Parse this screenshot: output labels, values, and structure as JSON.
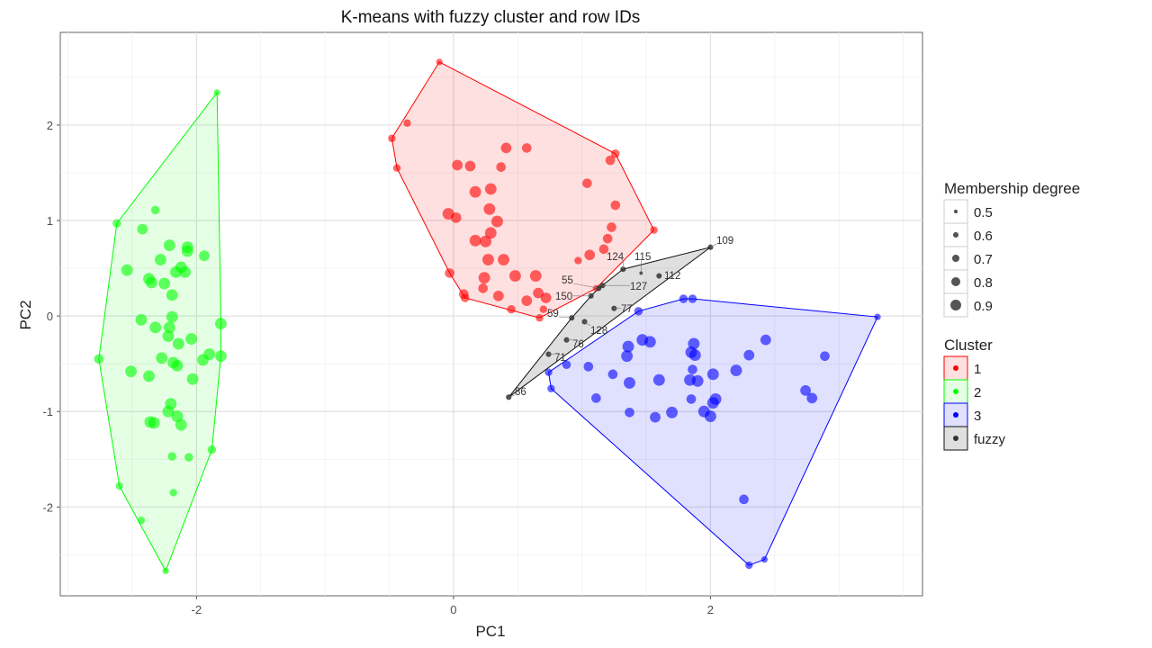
{
  "chart_data": {
    "type": "scatter",
    "title": "K-means with fuzzy cluster and row IDs",
    "xlabel": "PC1",
    "ylabel": "PC2",
    "xlim": [
      -3.06,
      3.65
    ],
    "ylim": [
      -2.93,
      2.97
    ],
    "xticks": [
      -2,
      0,
      2
    ],
    "yticks": [
      -2,
      -1,
      0,
      1,
      2
    ],
    "grid": true,
    "legend_position": "right",
    "size_legend": {
      "title": "Membership degree",
      "values": [
        0.5,
        0.6,
        0.7,
        0.8,
        0.9
      ]
    },
    "color_legend": {
      "title": "Cluster",
      "entries": [
        "1",
        "2",
        "3",
        "fuzzy"
      ]
    },
    "colors": {
      "1": "#ff0000",
      "2": "#00ff00",
      "3": "#0000ff",
      "fuzzy": "#333333"
    },
    "series": [
      {
        "name": "1",
        "points": [
          [
            -0.11,
            2.66,
            0.6
          ],
          [
            -0.36,
            2.02,
            0.65
          ],
          [
            -0.48,
            1.86,
            0.65
          ],
          [
            -0.44,
            1.55,
            0.65
          ],
          [
            0.41,
            1.76,
            0.8
          ],
          [
            0.57,
            1.76,
            0.75
          ],
          [
            0.03,
            1.58,
            0.8
          ],
          [
            0.13,
            1.57,
            0.8
          ],
          [
            0.37,
            1.56,
            0.75
          ],
          [
            1.26,
            1.7,
            0.7
          ],
          [
            1.22,
            1.63,
            0.75
          ],
          [
            1.04,
            1.39,
            0.75
          ],
          [
            0.17,
            1.3,
            0.85
          ],
          [
            0.29,
            1.33,
            0.85
          ],
          [
            0.28,
            1.12,
            0.85
          ],
          [
            -0.04,
            1.07,
            0.85
          ],
          [
            0.02,
            1.03,
            0.8
          ],
          [
            0.34,
            0.99,
            0.85
          ],
          [
            1.26,
            1.16,
            0.75
          ],
          [
            1.56,
            0.9,
            0.65
          ],
          [
            1.23,
            0.93,
            0.75
          ],
          [
            1.2,
            0.81,
            0.75
          ],
          [
            1.17,
            0.7,
            0.75
          ],
          [
            1.06,
            0.64,
            0.8
          ],
          [
            0.97,
            0.58,
            0.65
          ],
          [
            0.17,
            0.79,
            0.85
          ],
          [
            0.25,
            0.78,
            0.85
          ],
          [
            0.29,
            0.87,
            0.85
          ],
          [
            0.27,
            0.59,
            0.85
          ],
          [
            0.39,
            0.59,
            0.85
          ],
          [
            -0.03,
            0.45,
            0.75
          ],
          [
            0.24,
            0.4,
            0.85
          ],
          [
            0.48,
            0.42,
            0.85
          ],
          [
            0.64,
            0.42,
            0.85
          ],
          [
            0.23,
            0.29,
            0.75
          ],
          [
            0.08,
            0.23,
            0.75
          ],
          [
            0.09,
            0.19,
            0.7
          ],
          [
            0.35,
            0.21,
            0.8
          ],
          [
            0.57,
            0.16,
            0.8
          ],
          [
            0.66,
            0.24,
            0.8
          ],
          [
            0.72,
            0.19,
            0.8
          ],
          [
            0.45,
            0.07,
            0.7
          ],
          [
            0.67,
            -0.02,
            0.65
          ],
          [
            0.7,
            0.07,
            0.65
          ],
          [
            1.11,
            0.29,
            0.6
          ]
        ]
      },
      {
        "name": "2",
        "points": [
          [
            -1.84,
            2.34,
            0.6
          ],
          [
            -2.32,
            1.11,
            0.7
          ],
          [
            -2.62,
            0.97,
            0.7
          ],
          [
            -2.42,
            0.91,
            0.8
          ],
          [
            -2.21,
            0.74,
            0.85
          ],
          [
            -2.07,
            0.72,
            0.85
          ],
          [
            -2.07,
            0.68,
            0.85
          ],
          [
            -1.94,
            0.63,
            0.8
          ],
          [
            -2.28,
            0.59,
            0.85
          ],
          [
            -2.54,
            0.48,
            0.85
          ],
          [
            -2.12,
            0.51,
            0.85
          ],
          [
            -2.16,
            0.46,
            0.85
          ],
          [
            -2.09,
            0.46,
            0.85
          ],
          [
            -2.37,
            0.39,
            0.85
          ],
          [
            -2.35,
            0.35,
            0.85
          ],
          [
            -2.25,
            0.34,
            0.85
          ],
          [
            -2.19,
            0.22,
            0.85
          ],
          [
            -2.43,
            -0.04,
            0.85
          ],
          [
            -2.19,
            -0.01,
            0.85
          ],
          [
            -2.32,
            -0.12,
            0.85
          ],
          [
            -2.21,
            -0.12,
            0.85
          ],
          [
            -2.22,
            -0.21,
            0.85
          ],
          [
            -2.04,
            -0.24,
            0.85
          ],
          [
            -2.14,
            -0.29,
            0.85
          ],
          [
            -1.81,
            -0.08,
            0.85
          ],
          [
            -2.76,
            -0.45,
            0.75
          ],
          [
            -2.27,
            -0.44,
            0.85
          ],
          [
            -2.18,
            -0.49,
            0.85
          ],
          [
            -2.15,
            -0.52,
            0.85
          ],
          [
            -1.95,
            -0.46,
            0.85
          ],
          [
            -1.9,
            -0.4,
            0.85
          ],
          [
            -1.81,
            -0.42,
            0.85
          ],
          [
            -2.51,
            -0.58,
            0.85
          ],
          [
            -2.37,
            -0.63,
            0.85
          ],
          [
            -2.03,
            -0.66,
            0.85
          ],
          [
            -2.2,
            -0.92,
            0.85
          ],
          [
            -2.22,
            -1.0,
            0.85
          ],
          [
            -2.15,
            -1.05,
            0.85
          ],
          [
            -2.36,
            -1.11,
            0.85
          ],
          [
            -2.33,
            -1.12,
            0.85
          ],
          [
            -2.12,
            -1.14,
            0.85
          ],
          [
            -1.88,
            -1.4,
            0.7
          ],
          [
            -2.19,
            -1.47,
            0.7
          ],
          [
            -2.06,
            -1.48,
            0.7
          ],
          [
            -2.6,
            -1.78,
            0.65
          ],
          [
            -2.43,
            -2.14,
            0.65
          ],
          [
            -2.18,
            -1.85,
            0.65
          ],
          [
            -2.24,
            -2.67,
            0.6
          ]
        ]
      },
      {
        "name": "3",
        "points": [
          [
            1.79,
            0.18,
            0.7
          ],
          [
            1.86,
            0.18,
            0.7
          ],
          [
            1.44,
            0.05,
            0.7
          ],
          [
            3.3,
            -0.01,
            0.6
          ],
          [
            0.74,
            -0.59,
            0.65
          ],
          [
            0.76,
            -0.76,
            0.65
          ],
          [
            0.88,
            -0.51,
            0.7
          ],
          [
            1.05,
            -0.53,
            0.75
          ],
          [
            1.11,
            -0.86,
            0.75
          ],
          [
            1.24,
            -0.61,
            0.75
          ],
          [
            1.36,
            -0.32,
            0.85
          ],
          [
            1.35,
            -0.42,
            0.85
          ],
          [
            1.37,
            -0.7,
            0.85
          ],
          [
            1.47,
            -0.25,
            0.85
          ],
          [
            1.53,
            -0.27,
            0.85
          ],
          [
            1.6,
            -0.67,
            0.85
          ],
          [
            1.37,
            -1.01,
            0.75
          ],
          [
            1.57,
            -1.06,
            0.8
          ],
          [
            1.7,
            -1.01,
            0.85
          ],
          [
            1.87,
            -0.29,
            0.85
          ],
          [
            1.85,
            -0.38,
            0.85
          ],
          [
            1.88,
            -0.41,
            0.85
          ],
          [
            1.86,
            -0.56,
            0.75
          ],
          [
            1.84,
            -0.67,
            0.85
          ],
          [
            1.9,
            -0.68,
            0.85
          ],
          [
            1.85,
            -0.87,
            0.75
          ],
          [
            2.02,
            -0.61,
            0.85
          ],
          [
            2.04,
            -0.87,
            0.85
          ],
          [
            2.02,
            -0.91,
            0.85
          ],
          [
            1.95,
            -1.0,
            0.85
          ],
          [
            2.0,
            -1.05,
            0.85
          ],
          [
            2.2,
            -0.57,
            0.85
          ],
          [
            2.3,
            -0.41,
            0.8
          ],
          [
            2.43,
            -0.25,
            0.8
          ],
          [
            2.89,
            -0.42,
            0.75
          ],
          [
            2.74,
            -0.78,
            0.8
          ],
          [
            2.79,
            -0.86,
            0.8
          ],
          [
            2.26,
            -1.92,
            0.75
          ],
          [
            2.3,
            -2.61,
            0.65
          ],
          [
            2.42,
            -2.55,
            0.6
          ]
        ]
      },
      {
        "name": "fuzzy",
        "points": [
          [
            2.0,
            0.72,
            0.55,
            "109"
          ],
          [
            1.32,
            0.49,
            0.55,
            "124"
          ],
          [
            1.46,
            0.45,
            0.45,
            "115"
          ],
          [
            1.6,
            0.42,
            0.55,
            "112"
          ],
          [
            1.16,
            0.32,
            0.55,
            "127"
          ],
          [
            1.13,
            0.29,
            0.55,
            "55"
          ],
          [
            1.07,
            0.21,
            0.55,
            "150"
          ],
          [
            0.92,
            -0.02,
            0.55,
            "59"
          ],
          [
            1.02,
            -0.06,
            0.55,
            "128"
          ],
          [
            1.25,
            0.08,
            0.55,
            "77"
          ],
          [
            0.88,
            -0.25,
            0.55,
            "76"
          ],
          [
            0.74,
            -0.4,
            0.55,
            "71"
          ],
          [
            0.43,
            -0.85,
            0.55,
            "86"
          ]
        ]
      }
    ]
  }
}
